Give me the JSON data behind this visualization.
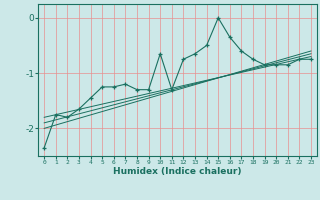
{
  "xlabel": "Humidex (Indice chaleur)",
  "ylabel": "",
  "background_color": "#cce8e8",
  "grid_color": "#e89090",
  "line_color": "#1a7060",
  "x_ticks": [
    0,
    1,
    2,
    3,
    4,
    5,
    6,
    7,
    8,
    9,
    10,
    11,
    12,
    13,
    14,
    15,
    16,
    17,
    18,
    19,
    20,
    21,
    22,
    23
  ],
  "y_ticks": [
    0,
    -1,
    -2
  ],
  "ylim": [
    -2.5,
    0.25
  ],
  "xlim": [
    -0.5,
    23.5
  ],
  "main_series_x": [
    0,
    1,
    2,
    3,
    4,
    5,
    6,
    7,
    8,
    9,
    10,
    11,
    12,
    13,
    14,
    15,
    16,
    17,
    18,
    19,
    20,
    21,
    22,
    23
  ],
  "main_series_y": [
    -2.35,
    -1.75,
    -1.8,
    -1.65,
    -1.45,
    -1.25,
    -1.25,
    -1.2,
    -1.3,
    -1.3,
    -0.65,
    -1.3,
    -0.75,
    -0.65,
    -0.5,
    0.0,
    -0.35,
    -0.6,
    -0.75,
    -0.85,
    -0.85,
    -0.85,
    -0.75,
    -0.75
  ],
  "reg_lines": [
    {
      "x": [
        0,
        23
      ],
      "y": [
        -2.0,
        -0.6
      ]
    },
    {
      "x": [
        0,
        23
      ],
      "y": [
        -1.9,
        -0.65
      ]
    },
    {
      "x": [
        0,
        23
      ],
      "y": [
        -1.8,
        -0.7
      ]
    }
  ]
}
